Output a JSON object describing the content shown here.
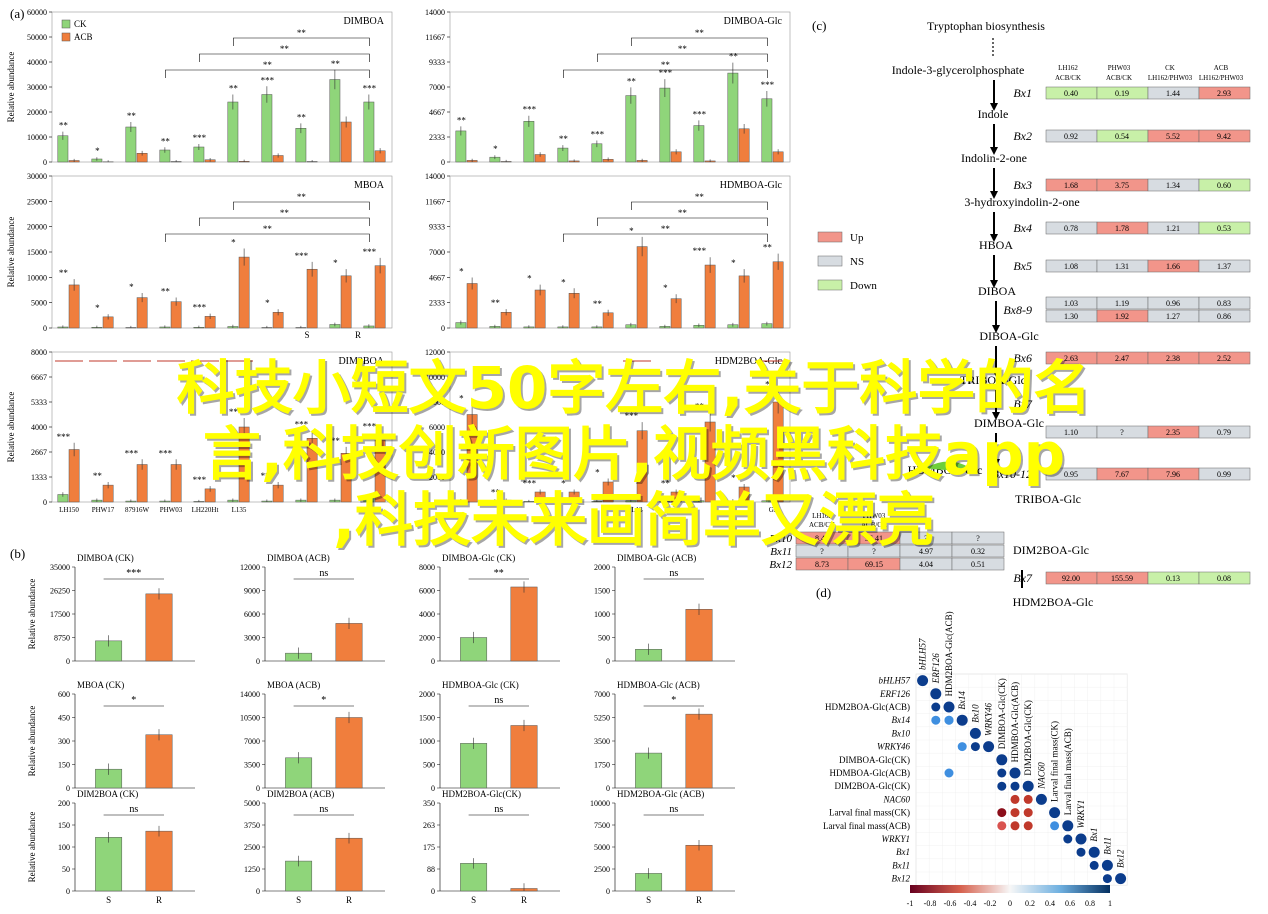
{
  "panels": {
    "a": "(a)",
    "b": "(b)",
    "c": "(c)",
    "d": "(d)"
  },
  "colors": {
    "CK": "#8fd57a",
    "ACB": "#f07e3d",
    "up": "#f2958a",
    "ns": "#d7dce1",
    "down": "#c8f0a8"
  },
  "chart_data": [
    {
      "type": "bar",
      "panel": "a",
      "title": "DIMBOA",
      "ylabel": "Relative abundance",
      "ylim": [
        0,
        60000
      ],
      "legend": [
        "CK",
        "ACB"
      ],
      "categories": [
        "1",
        "2",
        "3",
        "4",
        "5",
        "6",
        "7",
        "8",
        "9",
        "10"
      ],
      "series": [
        {
          "name": "CK",
          "values": [
            10500,
            1200,
            14000,
            4800,
            6000,
            24000,
            27000,
            13500,
            33000,
            24000
          ]
        },
        {
          "name": "ACB",
          "values": [
            600,
            100,
            3500,
            200,
            900,
            300,
            2600,
            200,
            16000,
            4500
          ]
        }
      ],
      "stars": [
        "**",
        "*",
        "**",
        "**",
        "***",
        "**",
        "***",
        "**",
        "**",
        "***"
      ],
      "brackets": [
        {
          "from": 5,
          "to": 9,
          "label": "**"
        },
        {
          "from": 4,
          "to": 9,
          "label": "**"
        },
        {
          "from": 3,
          "to": 9,
          "label": "**"
        }
      ]
    },
    {
      "type": "bar",
      "panel": "a",
      "title": "DIMBOA-Glc",
      "ylim": [
        0,
        14000
      ],
      "categories": [
        "1",
        "2",
        "3",
        "4",
        "5",
        "6",
        "7",
        "8",
        "9",
        "10"
      ],
      "series": [
        {
          "name": "CK",
          "values": [
            2900,
            450,
            3800,
            1300,
            1700,
            6200,
            6900,
            3400,
            8300,
            5900
          ]
        },
        {
          "name": "ACB",
          "values": [
            150,
            50,
            700,
            100,
            250,
            150,
            950,
            100,
            3100,
            950
          ]
        }
      ],
      "stars": [
        "**",
        "*",
        "***",
        "**",
        "***",
        "**",
        "***",
        "***",
        "**",
        "***"
      ],
      "brackets": [
        {
          "from": 5,
          "to": 9,
          "label": "**"
        },
        {
          "from": 4,
          "to": 9,
          "label": "**"
        },
        {
          "from": 3,
          "to": 9,
          "label": "**"
        }
      ]
    },
    {
      "type": "bar",
      "panel": "a",
      "title": "MBOA",
      "ylabel": "Relative abundance",
      "ylim": [
        0,
        30000
      ],
      "categories": [
        "1",
        "2",
        "3",
        "4",
        "5",
        "6",
        "7",
        "8",
        "9",
        "10"
      ],
      "series": [
        {
          "name": "CK",
          "values": [
            200,
            150,
            100,
            200,
            150,
            300,
            100,
            100,
            700,
            400
          ]
        },
        {
          "name": "ACB",
          "values": [
            8500,
            2200,
            6000,
            5200,
            2300,
            14000,
            3100,
            11600,
            10300,
            12300
          ]
        }
      ],
      "stars": [
        "**",
        "*",
        "*",
        "**",
        "***",
        "*",
        "*",
        "***",
        "*",
        "***"
      ],
      "brackets": [
        {
          "from": 5,
          "to": 9,
          "label": "**"
        },
        {
          "from": 4,
          "to": 9,
          "label": "**"
        },
        {
          "from": 3,
          "to": 9,
          "label": "**"
        }
      ],
      "xlabels": [
        "S",
        "R"
      ]
    },
    {
      "type": "bar",
      "panel": "a",
      "title": "HDMBOA-Glc",
      "ylim": [
        0,
        14000
      ],
      "categories": [
        "1",
        "2",
        "3",
        "4",
        "5",
        "6",
        "7",
        "8",
        "9",
        "10"
      ],
      "series": [
        {
          "name": "CK",
          "values": [
            500,
            150,
            100,
            100,
            100,
            300,
            150,
            250,
            300,
            400
          ]
        },
        {
          "name": "ACB",
          "values": [
            4100,
            1450,
            3500,
            3200,
            1400,
            7500,
            2700,
            5800,
            4800,
            6100
          ]
        }
      ],
      "stars": [
        "*",
        "**",
        "*",
        "*",
        "**",
        "*",
        "*",
        "***",
        "*",
        "**"
      ],
      "brackets": [
        {
          "from": 5,
          "to": 9,
          "label": "**"
        },
        {
          "from": 4,
          "to": 9,
          "label": "**"
        },
        {
          "from": 3,
          "to": 9,
          "label": "**"
        }
      ]
    },
    {
      "type": "bar",
      "panel": "a",
      "title": "DIM2BOA",
      "ylabel": "Relative abundance",
      "ylim": [
        0,
        8000
      ],
      "categories": [
        "LH150",
        "PHW17",
        "87916W",
        "PHW03",
        "LH220Ht",
        "L135",
        "?",
        "?",
        "?",
        "?"
      ],
      "series": [
        {
          "name": "CK",
          "values": [
            400,
            100,
            50,
            50,
            30,
            100,
            50,
            100,
            100,
            300
          ]
        },
        {
          "name": "ACB",
          "values": [
            2800,
            900,
            2000,
            2000,
            700,
            4000,
            900,
            3400,
            2600,
            3300
          ]
        }
      ],
      "stars": [
        "***",
        "**",
        "***",
        "***",
        "***",
        "**",
        "***",
        "***",
        "**",
        "***"
      ]
    },
    {
      "type": "bar",
      "panel": "a",
      "title": "HDM2BOA-Glc",
      "ylim": [
        0,
        12000
      ],
      "categories": [
        "?",
        "?",
        "?",
        "?",
        "?",
        "L13",
        "?",
        "?",
        "?",
        "G5"
      ],
      "series": [
        {
          "name": "CK",
          "values": [
            100,
            100,
            50,
            50,
            50,
            100,
            50,
            100,
            100,
            100
          ]
        },
        {
          "name": "ACB",
          "values": [
            7000,
            150,
            800,
            800,
            1600,
            5700,
            800,
            6400,
            1200,
            8000
          ]
        }
      ],
      "stars": [
        "*",
        "**",
        "***",
        "*",
        "*",
        "***",
        "**",
        "**",
        "*",
        "*"
      ]
    },
    {
      "type": "bar",
      "panel": "b",
      "title": "DIMBOA (CK)",
      "ylabel": "Relative abundance",
      "categories": [
        "S",
        "R"
      ],
      "values": [
        7500,
        25000
      ],
      "ylim": [
        0,
        35000
      ],
      "sig": "***"
    },
    {
      "type": "bar",
      "panel": "b",
      "title": "DIMBOA (ACB)",
      "categories": [
        "S",
        "R"
      ],
      "values": [
        1000,
        4800
      ],
      "ylim": [
        0,
        12000
      ],
      "sig": "ns"
    },
    {
      "type": "bar",
      "panel": "b",
      "title": "DIMBOA-Glc (CK)",
      "categories": [
        "S",
        "R"
      ],
      "values": [
        2000,
        6300
      ],
      "ylim": [
        0,
        8000
      ],
      "sig": "**"
    },
    {
      "type": "bar",
      "panel": "b",
      "title": "DIMBOA-Glc (ACB)",
      "categories": [
        "S",
        "R"
      ],
      "values": [
        250,
        1100
      ],
      "ylim": [
        0,
        2000
      ],
      "sig": "ns"
    },
    {
      "type": "bar",
      "panel": "b",
      "title": "MBOA (CK)",
      "ylabel": "Relative abundance",
      "categories": [
        "S",
        "R"
      ],
      "values": [
        120,
        340
      ],
      "ylim": [
        0,
        600
      ],
      "sig": "*"
    },
    {
      "type": "bar",
      "panel": "b",
      "title": "MBOA (ACB)",
      "categories": [
        "S",
        "R"
      ],
      "values": [
        4500,
        10500
      ],
      "ylim": [
        0,
        14000
      ],
      "sig": "*"
    },
    {
      "type": "bar",
      "panel": "b",
      "title": "HDMBOA-Glc (CK)",
      "categories": [
        "S",
        "R"
      ],
      "values": [
        950,
        1330
      ],
      "ylim": [
        0,
        2000
      ],
      "sig": "ns"
    },
    {
      "type": "bar",
      "panel": "b",
      "title": "HDMBOA-Glc (ACB)",
      "categories": [
        "S",
        "R"
      ],
      "values": [
        2600,
        5500
      ],
      "ylim": [
        0,
        7000
      ],
      "sig": "*"
    },
    {
      "type": "bar",
      "panel": "b",
      "title": "DIM2BOA (CK)",
      "ylabel": "Relative abundance",
      "categories": [
        "S",
        "R"
      ],
      "values": [
        122,
        136
      ],
      "ylim": [
        0,
        200
      ],
      "sig": "ns",
      "xlabels": [
        "S",
        "R"
      ]
    },
    {
      "type": "bar",
      "panel": "b",
      "title": "DIM2BOA (ACB)",
      "categories": [
        "S",
        "R"
      ],
      "values": [
        1700,
        3000
      ],
      "ylim": [
        0,
        5000
      ],
      "sig": "ns",
      "xlabels": [
        "S",
        "R"
      ]
    },
    {
      "type": "bar",
      "panel": "b",
      "title": "HDM2BOA-Glc(CK)",
      "categories": [
        "S",
        "R"
      ],
      "values": [
        110,
        10
      ],
      "ylim": [
        0,
        350
      ],
      "sig": "ns",
      "xlabels": [
        "S",
        "R"
      ]
    },
    {
      "type": "bar",
      "panel": "b",
      "title": "HDM2BOA-Glc (ACB)",
      "categories": [
        "S",
        "R"
      ],
      "values": [
        2000,
        5200
      ],
      "ylim": [
        0,
        10000
      ],
      "sig": "ns",
      "xlabels": [
        "S",
        "R"
      ]
    },
    {
      "type": "heatmap",
      "panel": "d",
      "labels": [
        "bHLH57",
        "ERF126",
        "HDM2BOA-Glc(ACB)",
        "Bx14",
        "Bx10",
        "WRKY46",
        "DIMBOA-Glc(CK)",
        "HDMBOA-Glc(ACB)",
        "DIM2BOA-Glc(CK)",
        "NAC60",
        "Larval final mass(CK)",
        "Larval final mass(ACB)",
        "WRKY1",
        "Bx1",
        "Bx11",
        "Bx12"
      ],
      "scale": [
        "-1",
        "-0.8",
        "-0.6",
        "-0.4",
        "-0.2",
        "0",
        "0.2",
        "0.4",
        "0.6",
        "0.8",
        "1"
      ]
    }
  ],
  "pathway": {
    "steps": [
      "Tryptophan biosynthesis",
      "Indole-3-glycerolphosphate",
      "Indole",
      "Indolin-2-one",
      "3-hydroxyindolin-2-one",
      "HBOA",
      "DIBOA",
      "DIBOA-Glc",
      "TRIBOA-Glc",
      "DIMBOA-Glc",
      "HDMBOA-Glc",
      "TRIBOA-Glc",
      "DIM2BOA-Glc",
      "HDM2BOA-Glc"
    ],
    "genes": [
      "Bx1",
      "Bx2",
      "Bx3",
      "Bx4",
      "Bx5",
      "Bx8-9",
      "Bx6",
      "Bx7",
      "Bx10-12",
      "Bx7",
      "Bx14"
    ],
    "columns": [
      "LH162 ACB/CK",
      "PHW03 ACB/CK",
      "CK LH162/PHW03",
      "ACB LH162/PHW03"
    ],
    "rows": [
      {
        "gene": "Bx1",
        "values": [
          "0.40",
          "0.19",
          "1.44",
          "2.93"
        ]
      },
      {
        "gene": "Bx2",
        "values": [
          "0.92",
          "0.54",
          "5.52",
          "9.42"
        ]
      },
      {
        "gene": "Bx3",
        "values": [
          "1.68",
          "3.75",
          "1.34",
          "0.60"
        ]
      },
      {
        "gene": "Bx4",
        "values": [
          "0.78",
          "1.78",
          "1.21",
          "0.53"
        ]
      },
      {
        "gene": "Bx5",
        "values": [
          "1.08",
          "1.31",
          "1.66",
          "1.37"
        ]
      },
      {
        "gene": "Bx8",
        "values": [
          "1.03",
          "1.19",
          "0.96",
          "0.83"
        ]
      },
      {
        "gene": "Bx9",
        "values": [
          "1.30",
          "1.92",
          "1.27",
          "0.86"
        ]
      },
      {
        "gene": "Bx6",
        "values": [
          "2.63",
          "2.47",
          "2.38",
          "2.52"
        ]
      },
      {
        "gene": "Bx7",
        "values": [
          "1.10",
          "?",
          "2.35",
          "0.79"
        ]
      },
      {
        "gene": "Bx10-12",
        "values": [
          "0.95",
          "7.67",
          "7.96",
          "0.99"
        ]
      },
      {
        "gene": "Bx14",
        "values": [
          "92.00",
          "155.59",
          "0.13",
          "0.08"
        ]
      }
    ],
    "small_table": [
      {
        "gene": "Bx10",
        "values": [
          "8.40",
          "36.41",
          "?",
          "?"
        ]
      },
      {
        "gene": "Bx11",
        "values": [
          "?",
          "?",
          "4.97",
          "0.32"
        ]
      },
      {
        "gene": "Bx12",
        "values": [
          "8.73",
          "69.15",
          "4.04",
          "0.51"
        ]
      }
    ],
    "legend": [
      "Up",
      "NS",
      "Down"
    ]
  },
  "overlay": {
    "line1": "科技小短文50字左右,关于科学的名",
    "line2": "言,科技创新图片,视频黑科技app",
    "line3": ",科技未来画简单又漂亮"
  }
}
